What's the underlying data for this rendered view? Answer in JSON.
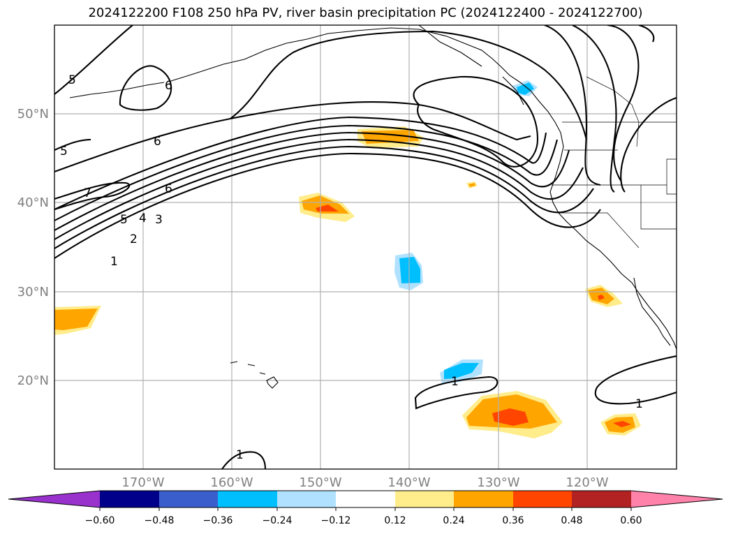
{
  "title": "2024122200 F108 250 hPa PV, river basin precipitation PC (2024122400 - 2024122700)",
  "map": {
    "lon_range": [
      -180,
      -110
    ],
    "lat_range": [
      10,
      60
    ],
    "lat_labels": [
      "20°N",
      "30°N",
      "40°N",
      "50°N"
    ],
    "lon_labels": [
      "170°W",
      "160°W",
      "150°W",
      "140°W",
      "130°W",
      "120°W"
    ],
    "gridlines": true,
    "pv_contour_labels": [
      "5",
      "5",
      "6",
      "6",
      "7",
      "5",
      "4",
      "3",
      "2",
      "1",
      "1",
      "1",
      "1",
      "6"
    ],
    "colors": {
      "land_outline": "#000000",
      "grid": "#b0b0b0",
      "tick_label": "#808080"
    }
  },
  "colorbar": {
    "ticks": [
      "−0.60",
      "−0.48",
      "−0.36",
      "−0.24",
      "−0.12",
      "0.12",
      "0.24",
      "0.36",
      "0.48",
      "0.60"
    ],
    "colors": [
      "#9932cc",
      "#00008b",
      "#3a5fcd",
      "#00bfff",
      "#b0e2ff",
      "#ffffff",
      "#ffec8b",
      "#ffa500",
      "#ff4500",
      "#b22222",
      "#ff82ab"
    ]
  }
}
